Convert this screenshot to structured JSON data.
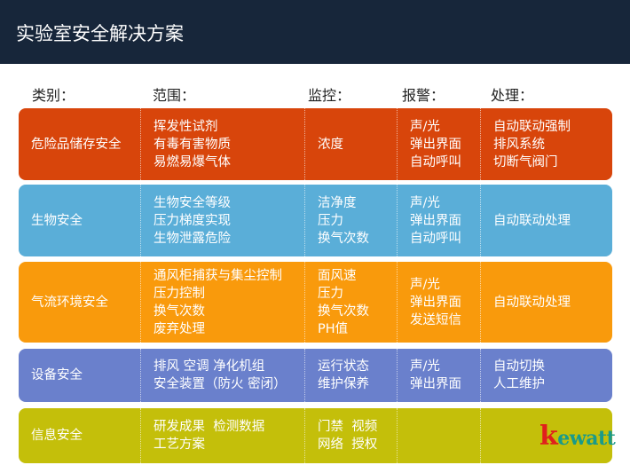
{
  "title": "实验室安全解决方案",
  "headers": [
    "类别：",
    "范围：",
    "监控：",
    "报警：",
    "处理："
  ],
  "rows": [
    {
      "color": "#d8450b",
      "category": "危险品储存安全",
      "scope": [
        "挥发性试剂",
        "有毒有害物质",
        "易燃易爆气体"
      ],
      "monitor": [
        "浓度"
      ],
      "alarm": [
        "声/光",
        "弹出界面",
        "自动呼叫"
      ],
      "action": [
        "自动联动强制",
        "排风系统",
        "切断气阀门"
      ]
    },
    {
      "color": "#5aaed8",
      "category": "生物安全",
      "scope": [
        "生物安全等级",
        "压力梯度实现",
        "生物泄露危险"
      ],
      "monitor": [
        "洁净度",
        "压力",
        "换气次数"
      ],
      "alarm": [
        "声/光",
        "弹出界面",
        "自动呼叫"
      ],
      "action": [
        "自动联动处理"
      ]
    },
    {
      "color": "#f99a0c",
      "category": "气流环境安全",
      "scope": [
        "通风柜捕获与集尘控制",
        "压力控制",
        "换气次数",
        "废弃处理"
      ],
      "monitor": [
        "面风速",
        "压力",
        "换气次数",
        "PH值"
      ],
      "alarm": [
        "声/光",
        "弹出界面",
        "发送短信"
      ],
      "action": [
        "自动联动处理"
      ]
    },
    {
      "color": "#6a80cc",
      "category": "设备安全",
      "scope": [
        "排风 空调 净化机组",
        "安全装置（防火 密闭）"
      ],
      "monitor": [
        "运行状态",
        "维护保养"
      ],
      "alarm": [
        "声/光",
        "弹出界面"
      ],
      "action": [
        "自动切换",
        "人工维护"
      ]
    },
    {
      "color": "#c4bf0a",
      "category": "信息安全",
      "scope": [
        "研发成果  检测数据",
        "工艺方案"
      ],
      "monitor": [
        "门禁  视频",
        "网络  授权"
      ],
      "alarm": [],
      "action": []
    }
  ],
  "logo": {
    "first": "k",
    "rest": "ewatt"
  }
}
